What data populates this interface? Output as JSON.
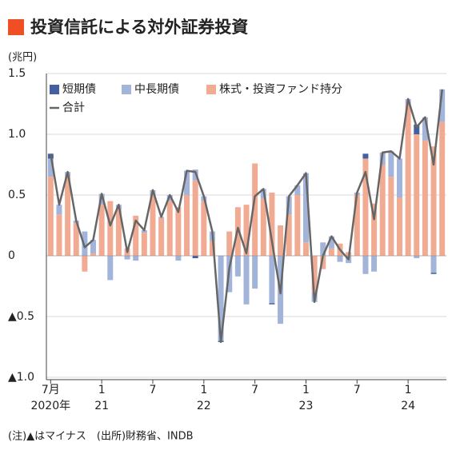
{
  "chart_data": {
    "type": "stacked_bar_line",
    "title": "投資信託による対外証券投資",
    "y_unit": "(兆円)",
    "note": "(注)▲はマイナス　(出所)財務省、INDB",
    "categories": [
      "7月",
      null,
      null,
      null,
      null,
      null,
      "1",
      null,
      null,
      null,
      null,
      null,
      "7",
      null,
      null,
      null,
      null,
      null,
      "1",
      null,
      null,
      null,
      null,
      null,
      "7",
      null,
      null,
      null,
      null,
      null,
      "1",
      null,
      null,
      null,
      null,
      null,
      "7",
      null,
      null,
      null,
      null,
      null,
      "1",
      null,
      null,
      null,
      null
    ],
    "years": [
      "2020年",
      null,
      null,
      null,
      null,
      null,
      "21",
      null,
      null,
      null,
      null,
      null,
      null,
      null,
      null,
      null,
      null,
      null,
      "22",
      null,
      null,
      null,
      null,
      null,
      null,
      null,
      null,
      null,
      null,
      null,
      "23",
      null,
      null,
      null,
      null,
      null,
      null,
      null,
      null,
      null,
      null,
      null,
      "24",
      null,
      null,
      null,
      null
    ],
    "series": [
      {
        "name": "短期債",
        "color": "#44609f",
        "kind": "bar",
        "values": [
          0.04,
          0,
          0,
          0,
          0,
          0,
          0,
          0,
          0,
          0,
          0,
          0,
          0,
          0,
          0,
          0,
          0,
          -0.02,
          0,
          0,
          -0.01,
          0,
          0,
          0,
          0,
          0,
          -0.01,
          0,
          0,
          0,
          0,
          0,
          0,
          0,
          0,
          0,
          0,
          0.04,
          0,
          0,
          0,
          0,
          0,
          0.08,
          0,
          -0.01,
          0
        ]
      },
      {
        "name": "中長期債",
        "color": "#a3b4da",
        "kind": "bar",
        "values": [
          0.15,
          0.08,
          0.04,
          0.02,
          0.2,
          0.11,
          0.09,
          -0.2,
          0.04,
          -0.03,
          -0.04,
          0.02,
          0.04,
          0.01,
          0.05,
          -0.04,
          0.2,
          0.09,
          0.04,
          0.08,
          -0.7,
          -0.3,
          -0.17,
          -0.4,
          -0.27,
          0.08,
          -0.39,
          -0.56,
          0.15,
          0.08,
          0.57,
          -0.08,
          0.11,
          0.1,
          -0.05,
          -0.06,
          0.02,
          -0.15,
          -0.13,
          0.1,
          0.21,
          0.32,
          0.04,
          -0.02,
          0.19,
          -0.14,
          0.27
        ]
      },
      {
        "name": "株式・投資ファンド持分",
        "color": "#f2ab93",
        "kind": "bar",
        "values": [
          0.65,
          0.34,
          0.65,
          0.27,
          -0.13,
          0.02,
          0.42,
          0.45,
          0.38,
          0.06,
          0.33,
          0.19,
          0.5,
          0.31,
          0.45,
          0.4,
          0.5,
          0.62,
          0.45,
          0.12,
          0,
          0.2,
          0.4,
          0.42,
          0.76,
          0.47,
          0.52,
          0.25,
          0.34,
          0.5,
          0.11,
          -0.3,
          -0.11,
          0.06,
          0.1,
          0.03,
          0.5,
          0.8,
          0.43,
          0.75,
          0.65,
          0.48,
          1.25,
          1,
          0.95,
          0.9,
          1.1
        ]
      },
      {
        "name": "合計",
        "color": "#666666",
        "kind": "line",
        "values": [
          0.84,
          0.42,
          0.69,
          0.29,
          0.07,
          0.13,
          0.51,
          0.25,
          0.42,
          0.03,
          0.29,
          0.21,
          0.54,
          0.32,
          0.5,
          0.36,
          0.7,
          0.69,
          0.49,
          0.2,
          -0.71,
          -0.1,
          0.23,
          0.02,
          0.49,
          0.55,
          0.12,
          -0.31,
          0.49,
          0.58,
          0.68,
          -0.38,
          0,
          0.16,
          0.05,
          -0.03,
          0.52,
          0.69,
          0.3,
          0.85,
          0.86,
          0.8,
          1.29,
          1.06,
          1.14,
          0.75,
          1.37
        ]
      }
    ],
    "ylim": [
      -1,
      1.5
    ],
    "yticks": [
      {
        "value": -1,
        "label": "▲1.0"
      },
      {
        "value": -0.5,
        "label": "▲0.5"
      },
      0,
      0.5,
      {
        "value": 1,
        "label": "1.0"
      },
      1.5
    ],
    "grid": true
  }
}
